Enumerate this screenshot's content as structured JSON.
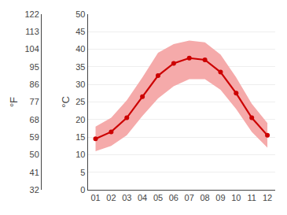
{
  "chart_data": {
    "type": "line",
    "x": [
      1,
      2,
      3,
      4,
      5,
      6,
      7,
      8,
      9,
      10,
      11,
      12
    ],
    "xlim": [
      0.5,
      12.5
    ],
    "xticks": [
      {
        "value": 1,
        "label": "01"
      },
      {
        "value": 2,
        "label": "02"
      },
      {
        "value": 3,
        "label": "03"
      },
      {
        "value": 4,
        "label": "04"
      },
      {
        "value": 5,
        "label": "05"
      },
      {
        "value": 6,
        "label": "06"
      },
      {
        "value": 7,
        "label": "07"
      },
      {
        "value": 8,
        "label": "08"
      },
      {
        "value": 9,
        "label": "09"
      },
      {
        "value": 10,
        "label": "10"
      },
      {
        "value": 11,
        "label": "11"
      },
      {
        "value": 12,
        "label": "12"
      }
    ],
    "ylabel": "°C",
    "ylim": [
      0,
      50
    ],
    "yticks": [
      0,
      5,
      10,
      15,
      20,
      25,
      30,
      35,
      40,
      45,
      50
    ],
    "y2label": "°F",
    "y2lim": [
      32,
      122
    ],
    "y2ticks": [
      32,
      41,
      50,
      59,
      68,
      77,
      86,
      95,
      104,
      113,
      122
    ],
    "grid": true,
    "series": [
      {
        "type": "area",
        "color": "#f5aaaa",
        "low": [
          11.0,
          12.5,
          15.5,
          21.0,
          26.0,
          29.5,
          31.5,
          31.5,
          28.5,
          23.0,
          16.5,
          12.0
        ],
        "high": [
          18.0,
          20.5,
          25.5,
          32.0,
          39.0,
          41.5,
          42.5,
          42.0,
          38.5,
          32.0,
          24.5,
          19.0
        ]
      },
      {
        "type": "line",
        "color": "#cc0000",
        "marker": "circle",
        "values": [
          14.5,
          16.5,
          20.5,
          26.5,
          32.5,
          36.0,
          37.5,
          37.0,
          33.5,
          27.5,
          20.5,
          15.5
        ]
      }
    ]
  }
}
